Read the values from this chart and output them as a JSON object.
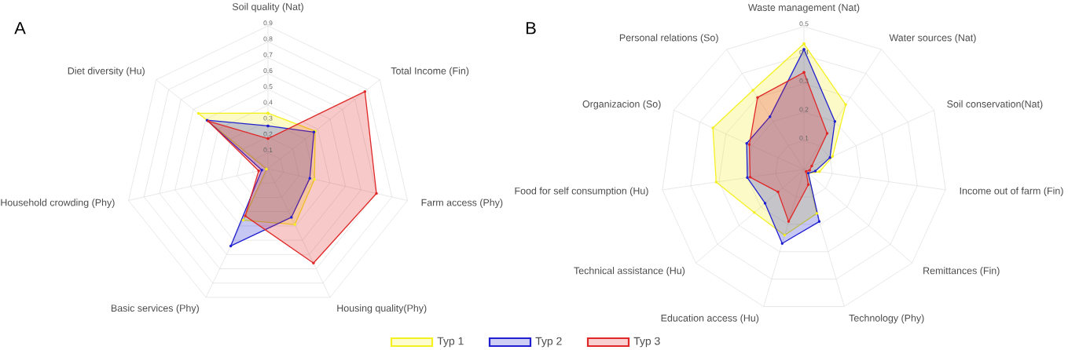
{
  "chart_data": [
    {
      "type": "radar",
      "title": "A",
      "categories": [
        "Soil quality (Nat)",
        "Total Income (Fin)",
        "Farm access (Phy)",
        "Housing quality(Phy)",
        "Basic services (Phy)",
        "Household crowding (Phy)",
        "Diet diversity (Hu)"
      ],
      "series": [
        {
          "color": "#f5f020",
          "values": [
            0.35,
            0.38,
            0.3,
            0.39,
            0.36,
            0.01,
            0.56
          ]
        },
        {
          "color": "#2020d0",
          "values": [
            0.27,
            0.37,
            0.27,
            0.34,
            0.54,
            0.04,
            0.49
          ]
        },
        {
          "color": "#e02828",
          "values": [
            0.19,
            0.78,
            0.7,
            0.66,
            0.33,
            0.06,
            0.48
          ]
        }
      ],
      "ylim": [
        0,
        0.9
      ],
      "yticks": [
        0.1,
        0.2,
        0.3,
        0.4,
        0.5,
        0.6,
        0.7,
        0.8,
        0.9
      ],
      "grid": true,
      "marker": "circle"
    },
    {
      "type": "radar",
      "title": "B",
      "categories": [
        "Waste management (Nat)",
        "Water sources (Nat)",
        "Soil conservation(Nat)",
        "Income out of farm (Fin)",
        "Remittances (Fin)",
        "Technology (Phy)",
        "Education access (Hu)",
        "Technical assistance (Hu)",
        "Food for self consumption (Hu)",
        "Organizacion (So)",
        "Personal relations (So)"
      ],
      "series": [
        {
          "name": "Typ 1",
          "color": "#f5f020",
          "values": [
            0.44,
            0.27,
            0.11,
            0.055,
            0.02,
            0.16,
            0.24,
            0.23,
            0.31,
            0.35,
            0.33
          ]
        },
        {
          "name": "Typ 2",
          "color": "#2020d0",
          "values": [
            0.42,
            0.2,
            0.1,
            0.04,
            0.02,
            0.19,
            0.27,
            0.18,
            0.2,
            0.22,
            0.22
          ]
        },
        {
          "name": "Typ 3",
          "color": "#e02828",
          "values": [
            0.34,
            0.15,
            0.03,
            0.02,
            0.01,
            0.055,
            0.19,
            0.12,
            0.19,
            0.21,
            0.3
          ]
        }
      ],
      "ylim": [
        0,
        0.5
      ],
      "yticks": [
        0.1,
        0.2,
        0.3,
        0.4,
        0.5
      ],
      "grid": true,
      "marker": "circle",
      "legend": "bottom"
    }
  ]
}
